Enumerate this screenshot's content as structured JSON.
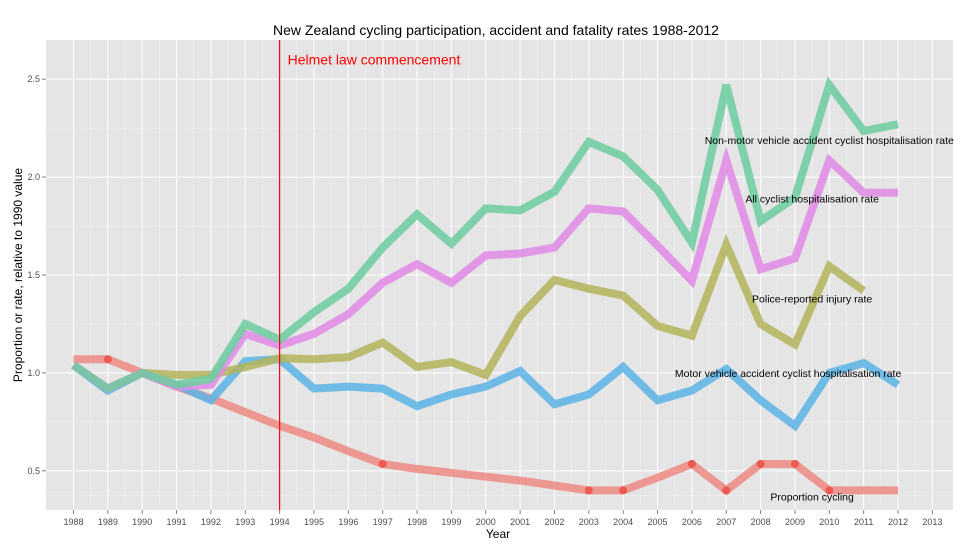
{
  "chart_data": {
    "type": "line",
    "title": "New Zealand cycling participation, accident and fatality rates 1988-2012",
    "xlabel": "Year",
    "ylabel": "Proportion or rate, relative to 1990 value",
    "xlim": [
      1987.2,
      2013.6
    ],
    "ylim": [
      0.3,
      2.7
    ],
    "xticks": [
      1988,
      1989,
      1990,
      1991,
      1992,
      1993,
      1994,
      1995,
      1996,
      1997,
      1998,
      1999,
      2000,
      2001,
      2002,
      2003,
      2004,
      2005,
      2006,
      2007,
      2008,
      2009,
      2010,
      2011,
      2012,
      2013
    ],
    "yticks": [
      0.5,
      1.0,
      1.5,
      2.0,
      2.5
    ],
    "ytick_labels": [
      "0.5",
      "1.0",
      "1.5",
      "2.0",
      "2.5"
    ],
    "grid": true,
    "legend": "none",
    "annotation": {
      "text": "Helmet law commencement",
      "x": 1994,
      "color": "#ff0000"
    },
    "series": [
      {
        "name": "Proportion cycling",
        "color": "#ef8a84",
        "x": [
          1988,
          1989,
          1990,
          1991,
          1992,
          1993,
          1994,
          1995,
          1996,
          1997,
          1998,
          1999,
          2000,
          2001,
          2002,
          2003,
          2004,
          2005,
          2006,
          2007,
          2008,
          2009,
          2010,
          2011,
          2012
        ],
        "values": [
          1.07,
          1.07,
          1.0,
          0.93,
          0.87,
          0.8,
          0.73,
          0.67,
          0.6,
          0.535,
          0.51,
          0.49,
          0.47,
          0.45,
          0.425,
          0.4,
          0.4,
          0.465,
          0.535,
          0.4,
          0.535,
          0.535,
          0.4,
          0.4,
          0.4
        ],
        "points_x": [
          1989,
          1997,
          2003,
          2004,
          2006,
          2007,
          2008,
          2009,
          2010
        ],
        "points_y": [
          1.07,
          0.535,
          0.4,
          0.4,
          0.535,
          0.4,
          0.535,
          0.535,
          0.4
        ],
        "label": "Proportion cycling",
        "label_x": 2009.5,
        "label_y": 0.37
      },
      {
        "name": "Motor vehicle accident cyclist hospitalisation rate",
        "color": "#5ab4e6",
        "x": [
          1988,
          1989,
          1990,
          1991,
          1992,
          1993,
          1994,
          1995,
          1996,
          1997,
          1998,
          1999,
          2000,
          2001,
          2002,
          2003,
          2004,
          2005,
          2006,
          2007,
          2008,
          2009,
          2010,
          2011,
          2012
        ],
        "values": [
          1.04,
          0.91,
          1.0,
          0.94,
          0.86,
          1.06,
          1.07,
          0.92,
          0.93,
          0.92,
          0.83,
          0.89,
          0.93,
          1.01,
          0.84,
          0.89,
          1.03,
          0.86,
          0.91,
          1.02,
          0.86,
          0.73,
          1.0,
          1.05,
          0.94
        ],
        "label": "Motor vehicle accident cyclist hospitalisation rate",
        "label_x": 2008.8,
        "label_y": 1.0
      },
      {
        "name": "Police-reported injury rate",
        "color": "#b4b45a",
        "x": [
          1988,
          1989,
          1990,
          1991,
          1992,
          1993,
          1994,
          1995,
          1996,
          1997,
          1998,
          1999,
          2000,
          2001,
          2002,
          2003,
          2004,
          2005,
          2006,
          2007,
          2008,
          2009,
          2010,
          2011
        ],
        "values": [
          1.04,
          0.92,
          1.0,
          0.99,
          0.99,
          1.03,
          1.075,
          1.07,
          1.08,
          1.155,
          1.03,
          1.055,
          0.99,
          1.29,
          1.475,
          1.43,
          1.395,
          1.24,
          1.19,
          1.655,
          1.25,
          1.145,
          1.545,
          1.42
        ],
        "label": "Police-reported injury rate",
        "label_x": 2009.5,
        "label_y": 1.38
      },
      {
        "name": "All cyclist hospitalisation rate",
        "color": "#e08ae6",
        "x": [
          1988,
          1989,
          1990,
          1991,
          1992,
          1993,
          1994,
          1995,
          1996,
          1997,
          1998,
          1999,
          2000,
          2001,
          2002,
          2003,
          2004,
          2005,
          2006,
          2007,
          2008,
          2009,
          2010,
          2011,
          2012
        ],
        "values": [
          1.04,
          0.92,
          1.0,
          0.93,
          0.94,
          1.2,
          1.14,
          1.2,
          1.3,
          1.46,
          1.555,
          1.46,
          1.6,
          1.61,
          1.64,
          1.84,
          1.825,
          1.65,
          1.47,
          2.085,
          1.53,
          1.585,
          2.085,
          1.92,
          1.92
        ],
        "label": "All cyclist hospitalisation rate",
        "label_x": 2009.5,
        "label_y": 1.89
      },
      {
        "name": "Non-motor vehicle accident cyclist hospitalisation rate",
        "color": "#6ccca0",
        "x": [
          1988,
          1989,
          1990,
          1991,
          1992,
          1993,
          1994,
          1995,
          1996,
          1997,
          1998,
          1999,
          2000,
          2001,
          2002,
          2003,
          2004,
          2005,
          2006,
          2007,
          2008,
          2009,
          2010,
          2011,
          2012
        ],
        "values": [
          1.04,
          0.92,
          1.0,
          0.94,
          0.97,
          1.25,
          1.17,
          1.31,
          1.43,
          1.64,
          1.81,
          1.66,
          1.84,
          1.83,
          1.925,
          2.18,
          2.105,
          1.935,
          1.665,
          2.47,
          1.775,
          1.895,
          2.47,
          2.235,
          2.27
        ],
        "label": "Non-motor vehicle accident cyclist hospitalisation rate",
        "label_x": 2010.0,
        "label_y": 2.19
      }
    ]
  }
}
